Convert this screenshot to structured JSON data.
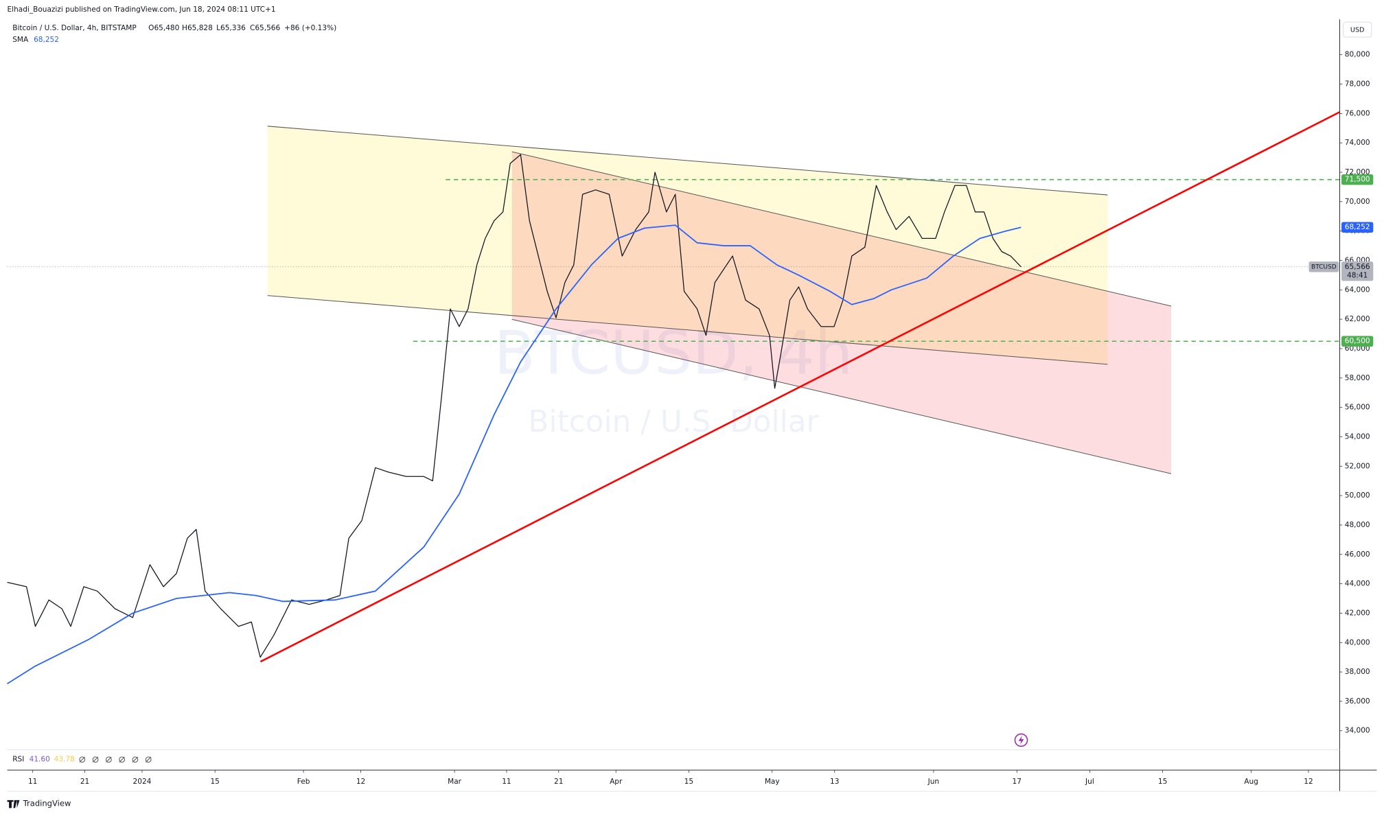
{
  "header": {
    "published": "Elhadi_Bouazizi published on TradingView.com, Jun 18, 2024 08:11 UTC+1",
    "symbol": "Bitcoin / U.S. Dollar, 4h, BITSTAMP",
    "ohlc": [
      "O65,480",
      "H65,828",
      "L65,336",
      "C65,566",
      "+86 (+0.13%)"
    ],
    "sma_value": "68,252",
    "currency": "USD",
    "countdown": "48:41",
    "watermark_symbol": "BTCUSD, 4h",
    "watermark_name": "Bitcoin / U.S. Dollar",
    "brand": "TradingView"
  },
  "rsi": {
    "name": "RSI",
    "values": [
      "41.60",
      "43.78"
    ]
  },
  "chart_data": {
    "type": "line",
    "xlim": [
      -4.9,
      251
    ],
    "xticks": [
      {
        "value": 0,
        "label": "11"
      },
      {
        "value": 10,
        "label": "21"
      },
      {
        "value": 21,
        "label": "2024"
      },
      {
        "value": 35,
        "label": "15"
      },
      {
        "value": 52,
        "label": "Feb"
      },
      {
        "value": 63,
        "label": "12"
      },
      {
        "value": 81,
        "label": "Mar"
      },
      {
        "value": 91,
        "label": "11"
      },
      {
        "value": 101,
        "label": "21"
      },
      {
        "value": 112,
        "label": "Apr"
      },
      {
        "value": 126,
        "label": "15"
      },
      {
        "value": 142,
        "label": "May"
      },
      {
        "value": 154,
        "label": "13"
      },
      {
        "value": 173,
        "label": "Jun"
      },
      {
        "value": 189,
        "label": "17"
      },
      {
        "value": 203,
        "label": "Jul"
      },
      {
        "value": 217,
        "label": "15"
      },
      {
        "value": 234,
        "label": "Aug"
      },
      {
        "value": 245,
        "label": "12"
      }
    ],
    "ylim": [
      32700,
      82400
    ],
    "yticks": [
      {
        "value": 34000,
        "label": "34,000"
      },
      {
        "value": 36000,
        "label": "36,000"
      },
      {
        "value": 38000,
        "label": "38,000"
      },
      {
        "value": 40000,
        "label": "40,000"
      },
      {
        "value": 42000,
        "label": "42,000"
      },
      {
        "value": 44000,
        "label": "44,000"
      },
      {
        "value": 46000,
        "label": "46,000"
      },
      {
        "value": 48000,
        "label": "48,000"
      },
      {
        "value": 50000,
        "label": "50,000"
      },
      {
        "value": 52000,
        "label": "52,000"
      },
      {
        "value": 54000,
        "label": "54,000"
      },
      {
        "value": 56000,
        "label": "56,000"
      },
      {
        "value": 58000,
        "label": "58,000"
      },
      {
        "value": 60000,
        "label": "60,000"
      },
      {
        "value": 62000,
        "label": "62,000"
      },
      {
        "value": 64000,
        "label": "64,000"
      },
      {
        "value": 66000,
        "label": "66,000"
      },
      {
        "value": 68000,
        "label": "68,000"
      },
      {
        "value": 70000,
        "label": "70,000"
      },
      {
        "value": 72000,
        "label": "72,000"
      },
      {
        "value": 74000,
        "label": "74,000"
      },
      {
        "value": 76000,
        "label": "76,000"
      },
      {
        "value": 78000,
        "label": "78,000"
      },
      {
        "value": 80000,
        "label": "80,000"
      }
    ],
    "series": [
      {
        "name": "BTCUSD",
        "color": "#131722",
        "x": [
          -4.9,
          -1.2,
          0.5,
          3.1,
          5.6,
          7.3,
          9.8,
          12.4,
          15.8,
          19.2,
          22.5,
          25.1,
          27.6,
          29.7,
          31.4,
          33.1,
          36.1,
          39.5,
          42.0,
          43.7,
          46.3,
          49.7,
          53.1,
          56.4,
          59.0,
          60.7,
          63.2,
          65.8,
          68.3,
          71.7,
          75.1,
          76.8,
          78.5,
          80.2,
          81.9,
          83.6,
          85.3,
          86.9,
          88.6,
          90.3,
          91.7,
          93.7,
          95.4,
          97.1,
          98.8,
          100.5,
          102.2,
          103.9,
          105.6,
          108.1,
          110.7,
          113.2,
          115.8,
          118.3,
          119.5,
          121.7,
          123.4,
          125.1,
          127.6,
          129.3,
          131.0,
          134.4,
          136.9,
          139.5,
          141.5,
          142.5,
          143.7,
          145.4,
          147.1,
          148.8,
          151.4,
          153.9,
          155.6,
          157.3,
          159.8,
          162.0,
          164.1,
          165.8,
          168.3,
          170.8,
          173.4,
          175.1,
          177.1,
          179.3,
          181.0,
          182.7,
          184.4,
          186.1,
          187.8,
          189.8
        ],
        "values": [
          44100,
          43800,
          41100,
          42900,
          42300,
          41100,
          43800,
          43500,
          42300,
          41700,
          45300,
          43800,
          44700,
          47100,
          47700,
          43500,
          42300,
          41100,
          41400,
          39000,
          40500,
          42900,
          42600,
          42900,
          43200,
          47100,
          48300,
          51900,
          51600,
          51300,
          51300,
          51000,
          56700,
          62700,
          61500,
          62700,
          65700,
          67500,
          68700,
          69300,
          72600,
          73200,
          68700,
          66300,
          63900,
          62100,
          64500,
          65700,
          70500,
          70800,
          70500,
          66300,
          68100,
          69300,
          72000,
          69300,
          70500,
          63900,
          62700,
          60900,
          64500,
          66300,
          63300,
          62700,
          60900,
          57300,
          59700,
          63300,
          64200,
          62700,
          61500,
          61500,
          63300,
          66300,
          66900,
          71100,
          69300,
          68100,
          69000,
          67500,
          67500,
          69300,
          71100,
          71100,
          69300,
          69300,
          67500,
          66600,
          66300,
          65566
        ]
      },
      {
        "name": "SMA",
        "color": "#2962ff",
        "x": [
          -4.9,
          0.5,
          10.7,
          19.2,
          27.6,
          37.8,
          42.9,
          48.0,
          58.1,
          65.8,
          75.1,
          81.9,
          88.6,
          93.7,
          100.5,
          107.3,
          112.4,
          117.5,
          123.4,
          127.6,
          132.7,
          137.8,
          142.9,
          147.1,
          153.1,
          157.3,
          161.5,
          164.9,
          171.7,
          176.8,
          181.9,
          186.9,
          189.8
        ],
        "values": [
          37200,
          38400,
          40200,
          42000,
          43000,
          43400,
          43200,
          42800,
          42900,
          43500,
          46500,
          50100,
          55500,
          59100,
          62700,
          65700,
          67500,
          68200,
          68400,
          67200,
          67000,
          67000,
          65700,
          65000,
          63900,
          63000,
          63400,
          64000,
          64800,
          66300,
          67500,
          68000,
          68252
        ]
      }
    ],
    "hlines": [
      {
        "value": 71500,
        "label": "71,500",
        "color": "#089981"
      },
      {
        "value": 60500,
        "label": "60,500",
        "color": "#089981"
      }
    ],
    "last_price": {
      "value": 65566,
      "label": "65,566"
    }
  }
}
